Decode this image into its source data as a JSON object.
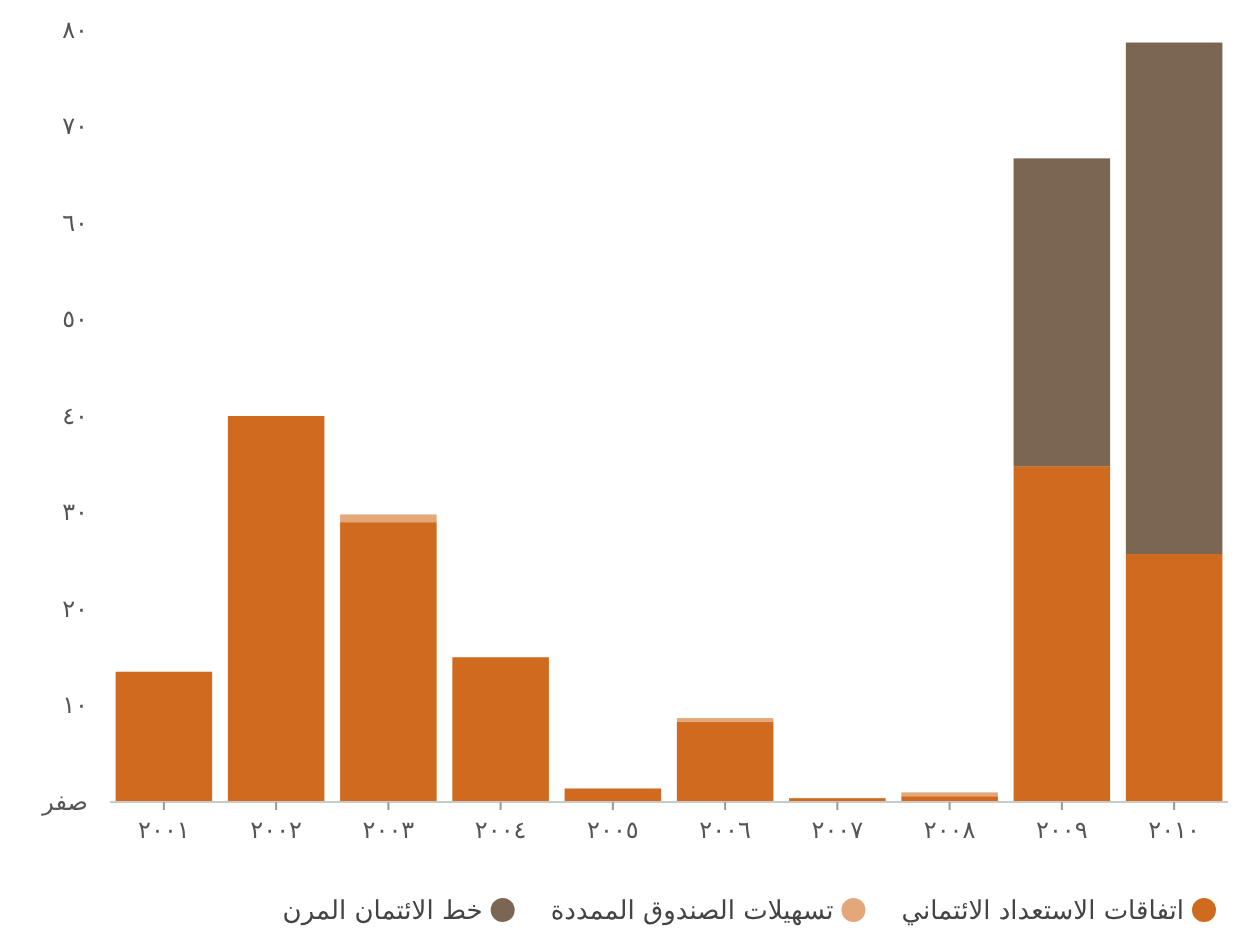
{
  "chart_data": {
    "type": "bar",
    "stacked": true,
    "categories": [
      "٢٠٠١",
      "٢٠٠٢",
      "٢٠٠٣",
      "٢٠٠٤",
      "٢٠٠٥",
      "٢٠٠٦",
      "٢٠٠٧",
      "٢٠٠٨",
      "٢٠٠٩",
      "٢٠١٠"
    ],
    "series": [
      {
        "name": "اتفاقات الاستعداد الائتماني",
        "color": "#d06a1e",
        "values": [
          13.5,
          40,
          29,
          15,
          1.4,
          8.3,
          0.4,
          0.6,
          34.8,
          25.7
        ]
      },
      {
        "name": "تسهيلات الصندوق الممددة",
        "color": "#e4a77a",
        "values": [
          0,
          0,
          0.8,
          0,
          0,
          0.4,
          0,
          0.4,
          0,
          0
        ]
      },
      {
        "name": "خط الائتمان المرن",
        "color": "#7a6651",
        "values": [
          0,
          0,
          0,
          0,
          0,
          0,
          0,
          0,
          31.9,
          53
        ]
      }
    ],
    "ylim": [
      0,
      80
    ],
    "yticks": [
      {
        "value": 0,
        "label": "صفر"
      },
      {
        "value": 10,
        "label": "١٠"
      },
      {
        "value": 20,
        "label": "٢٠"
      },
      {
        "value": 30,
        "label": "٣٠"
      },
      {
        "value": 40,
        "label": "٤٠"
      },
      {
        "value": 50,
        "label": "٥٠"
      },
      {
        "value": 60,
        "label": "٦٠"
      },
      {
        "value": 70,
        "label": "٧٠"
      },
      {
        "value": 80,
        "label": "٨٠"
      }
    ],
    "grid": false,
    "legend": "bottom"
  }
}
